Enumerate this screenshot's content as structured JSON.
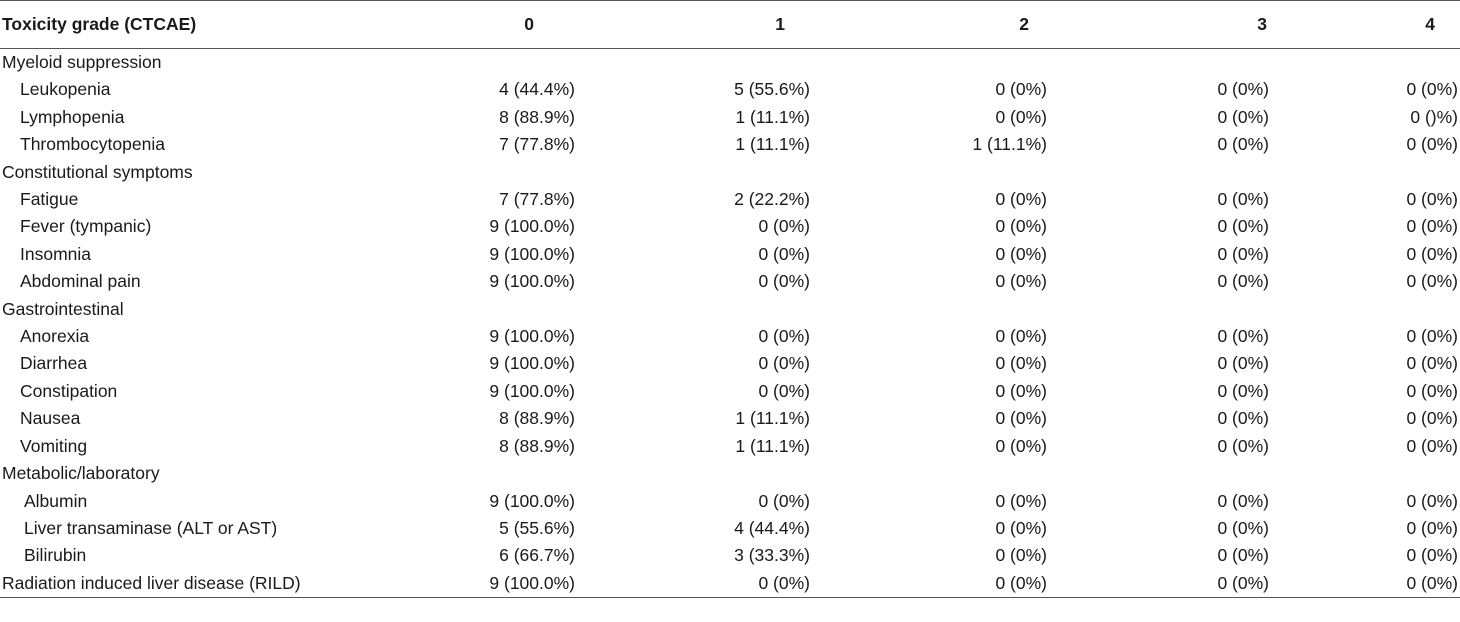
{
  "header": {
    "label": "Toxicity grade (CTCAE)",
    "grades": [
      "0",
      "1",
      "2",
      "3",
      "4"
    ]
  },
  "rows": [
    {
      "label": "Myeloid suppression",
      "type": "category",
      "values": []
    },
    {
      "label": "Leukopenia",
      "type": "item",
      "values": [
        "4 (44.4%)",
        "5 (55.6%)",
        "0 (0%)",
        "0 (0%)",
        "0 (0%)"
      ]
    },
    {
      "label": "Lymphopenia",
      "type": "item",
      "values": [
        "8 (88.9%)",
        "1 (11.1%)",
        "0 (0%)",
        "0 (0%)",
        "0 ()%)"
      ]
    },
    {
      "label": "Thrombocytopenia",
      "type": "item",
      "values": [
        "7 (77.8%)",
        "1 (11.1%)",
        "1 (11.1%)",
        "0 (0%)",
        "0 (0%)"
      ]
    },
    {
      "label": "Constitutional symptoms",
      "type": "category",
      "values": []
    },
    {
      "label": "Fatigue",
      "type": "item",
      "values": [
        "7 (77.8%)",
        "2 (22.2%)",
        "0 (0%)",
        "0 (0%)",
        "0 (0%)"
      ]
    },
    {
      "label": "Fever (tympanic)",
      "type": "item",
      "values": [
        "9 (100.0%)",
        "0 (0%)",
        "0 (0%)",
        "0 (0%)",
        "0 (0%)"
      ]
    },
    {
      "label": "Insomnia",
      "type": "item",
      "values": [
        "9 (100.0%)",
        "0 (0%)",
        "0 (0%)",
        "0 (0%)",
        "0 (0%)"
      ]
    },
    {
      "label": "Abdominal pain",
      "type": "item",
      "values": [
        "9 (100.0%)",
        "0 (0%)",
        "0 (0%)",
        "0 (0%)",
        "0 (0%)"
      ]
    },
    {
      "label": "Gastrointestinal",
      "type": "category",
      "values": []
    },
    {
      "label": "Anorexia",
      "type": "item",
      "values": [
        "9 (100.0%)",
        "0 (0%)",
        "0 (0%)",
        "0 (0%)",
        "0 (0%)"
      ]
    },
    {
      "label": "Diarrhea",
      "type": "item",
      "values": [
        "9 (100.0%)",
        "0 (0%)",
        "0 (0%)",
        "0 (0%)",
        "0 (0%)"
      ]
    },
    {
      "label": "Constipation",
      "type": "item",
      "values": [
        "9 (100.0%)",
        "0 (0%)",
        "0 (0%)",
        "0 (0%)",
        "0 (0%)"
      ]
    },
    {
      "label": "Nausea",
      "type": "item",
      "values": [
        "8 (88.9%)",
        "1 (11.1%)",
        "0 (0%)",
        "0 (0%)",
        "0 (0%)"
      ]
    },
    {
      "label": "Vomiting",
      "type": "item",
      "values": [
        "8 (88.9%)",
        "1 (11.1%)",
        "0 (0%)",
        "0 (0%)",
        "0 (0%)"
      ]
    },
    {
      "label": "Metabolic/laboratory",
      "type": "category",
      "values": []
    },
    {
      "label": "Albumin",
      "type": "item2",
      "values": [
        "9 (100.0%)",
        "0 (0%)",
        "0 (0%)",
        "0 (0%)",
        "0 (0%)"
      ]
    },
    {
      "label": "Liver transaminase (ALT or AST)",
      "type": "item2",
      "values": [
        "5 (55.6%)",
        "4 (44.4%)",
        "0 (0%)",
        "0 (0%)",
        "0 (0%)"
      ]
    },
    {
      "label": "Bilirubin",
      "type": "item2",
      "values": [
        "6 (66.7%)",
        "3 (33.3%)",
        "0 (0%)",
        "0 (0%)",
        "0 (0%)"
      ]
    },
    {
      "label": "Radiation induced liver disease (RILD)",
      "type": "category",
      "values": [
        "9 (100.0%)",
        "0 (0%)",
        "0 (0%)",
        "0 (0%)",
        "0 (0%)"
      ]
    }
  ]
}
